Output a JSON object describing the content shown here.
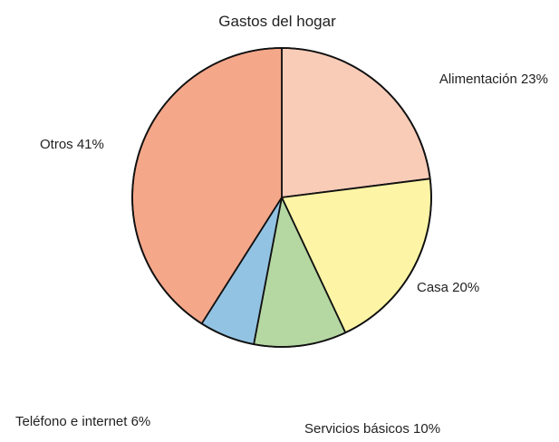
{
  "chart_data": {
    "type": "pie",
    "title": "Gastos del hogar",
    "start_angle_deg": 0,
    "direction": "clockwise",
    "slices": [
      {
        "name": "Alimentación",
        "value": 23,
        "label": "Alimentación 23%",
        "color": "#f9ccb8"
      },
      {
        "name": "Casa",
        "value": 20,
        "label": "Casa 20%",
        "color": "#fdf5a5"
      },
      {
        "name": "Servicios básicos",
        "value": 10,
        "label": "Servicios básicos 10%",
        "color": "#b5d7a2"
      },
      {
        "name": "Teléfono e internet",
        "value": 6,
        "label": "Teléfono e internet 6%",
        "color": "#93c3e3"
      },
      {
        "name": "Otros",
        "value": 41,
        "label": "Otros 41%",
        "color": "#f5a78a"
      }
    ]
  }
}
